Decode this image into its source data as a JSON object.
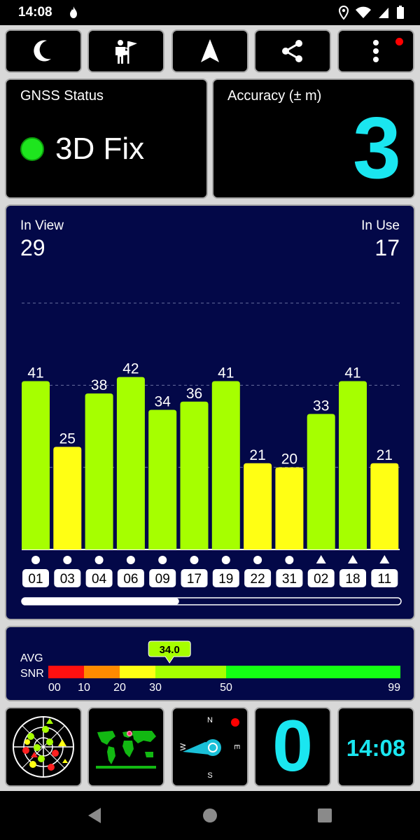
{
  "status_bar": {
    "time": "14:08"
  },
  "toolbar": {
    "buttons": [
      {
        "name": "night-mode",
        "icon": "moon-icon",
        "locked": false
      },
      {
        "name": "activity",
        "icon": "person-flag-icon",
        "locked": true
      },
      {
        "name": "navigation",
        "icon": "navigation-arrow-icon",
        "locked": true
      },
      {
        "name": "share",
        "icon": "share-icon",
        "locked": false
      },
      {
        "name": "more",
        "icon": "more-vertical-icon",
        "notification": true
      }
    ]
  },
  "gnss_status": {
    "label": "GNSS Status",
    "fix": "3D Fix",
    "indicator_color": "#1ee51e"
  },
  "accuracy": {
    "label": "Accuracy (± m)",
    "value": "3"
  },
  "satellites": {
    "in_view_label": "In View",
    "in_view": "29",
    "in_use_label": "In Use",
    "in_use": "17"
  },
  "chart_data": {
    "type": "bar",
    "categories": [
      "01",
      "03",
      "04",
      "06",
      "09",
      "17",
      "19",
      "22",
      "31",
      "02",
      "18",
      "11"
    ],
    "values": [
      41,
      25,
      38,
      42,
      34,
      36,
      41,
      21,
      20,
      33,
      41,
      21
    ],
    "in_use": [
      true,
      false,
      true,
      true,
      true,
      true,
      true,
      false,
      false,
      true,
      true,
      false
    ],
    "constellation_marker": [
      "circle",
      "circle",
      "circle",
      "circle",
      "circle",
      "circle",
      "circle",
      "circle",
      "circle",
      "triangle",
      "triangle",
      "triangle"
    ],
    "ylim": [
      0,
      60
    ],
    "gridlines": [
      20,
      40,
      60
    ],
    "colors": {
      "in_use": "#a6ff00",
      "not_used": "#ffff14",
      "background": "#030848"
    },
    "scroll_position": 0.4
  },
  "avg_snr": {
    "label_line1": "AVG",
    "label_line2": "SNR",
    "value": "34.0",
    "value_numeric": 34.0,
    "scale_ticks": [
      "00",
      "10",
      "20",
      "30",
      "50",
      "99"
    ],
    "segments": [
      {
        "from": 0,
        "to": 10,
        "color": "#ff1010"
      },
      {
        "from": 10,
        "to": 20,
        "color": "#ff8a00"
      },
      {
        "from": 20,
        "to": 30,
        "color": "#ffff14"
      },
      {
        "from": 30,
        "to": 50,
        "color": "#a6ff00"
      },
      {
        "from": 50,
        "to": 99,
        "color": "#14ff14"
      }
    ]
  },
  "bottom_widgets": {
    "compass": {
      "north": "N",
      "east": "E",
      "south": "S",
      "west": "W"
    },
    "speed": "0",
    "clock": "14:08"
  }
}
